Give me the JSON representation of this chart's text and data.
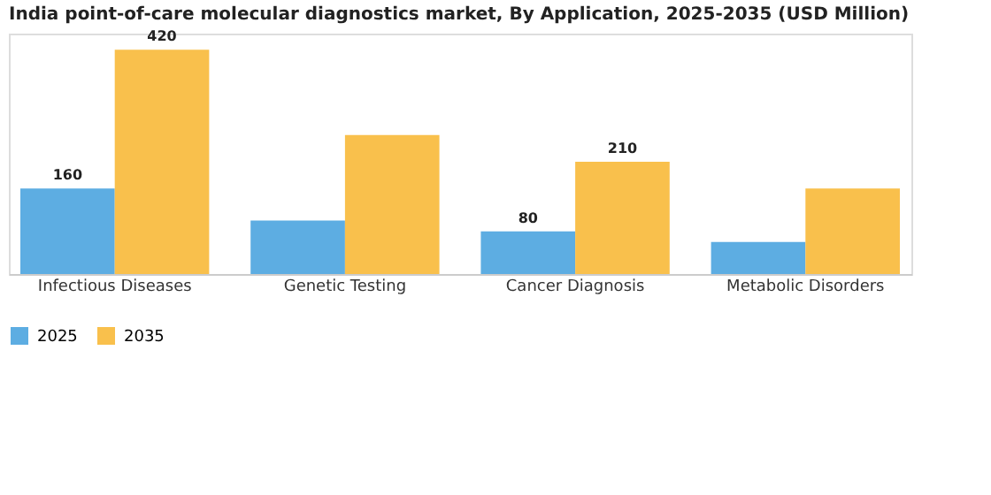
{
  "chart_data": {
    "type": "bar",
    "title": "India point-of-care molecular diagnostics market, By Application, 2025-2035 (USD Million)",
    "categories": [
      "Infectious Diseases",
      "Genetic Testing",
      "Cancer Diagnosis",
      "Metabolic Disorders"
    ],
    "series": [
      {
        "name": "2025",
        "color": "#5dade2",
        "values": [
          160,
          100,
          80,
          60
        ],
        "value_labels": [
          "160",
          null,
          "80",
          null
        ]
      },
      {
        "name": "2035",
        "color": "#f9c04c",
        "values": [
          420,
          260,
          210,
          160
        ],
        "value_labels": [
          "420",
          null,
          "210",
          null
        ]
      }
    ],
    "legend": "bottom",
    "grid": false,
    "tick_labels": "x"
  }
}
